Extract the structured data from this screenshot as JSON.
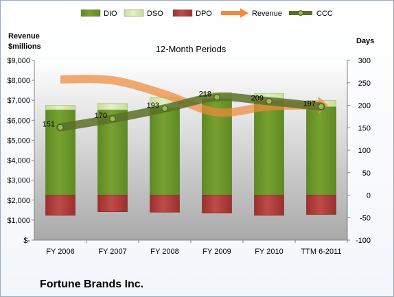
{
  "chart_data": {
    "type": "bar",
    "title": "12-Month Periods",
    "company": "Fortune Brands Inc.",
    "left_axis_title": [
      "Revenue",
      "$millions"
    ],
    "right_axis_title": "Days",
    "left_axis": {
      "min": 0,
      "max": 9000,
      "step": 1000,
      "tick_labels": [
        "$-",
        "$1,000",
        "$2,000",
        "$3,000",
        "$4,000",
        "$5,000",
        "$6,000",
        "$7,000",
        "$8,000",
        "$9,000"
      ]
    },
    "right_axis": {
      "min": -100,
      "max": 300,
      "step": 50,
      "tick_labels": [
        "-100",
        "-50",
        "0",
        "50",
        "100",
        "150",
        "200",
        "250",
        "300"
      ]
    },
    "categories": [
      "FY 2006",
      "FY 2007",
      "FY 2008",
      "FY 2009",
      "FY 2010",
      "TTM 6-2011"
    ],
    "series": [
      {
        "name": "DIO",
        "kind": "bar",
        "axis": "days",
        "color": "#77a132",
        "values": [
          190,
          190,
          195,
          215,
          210,
          197
        ]
      },
      {
        "name": "DSO",
        "kind": "bar",
        "axis": "days",
        "color": "#e3efc5",
        "values": [
          10,
          14,
          22,
          14,
          16,
          14
        ]
      },
      {
        "name": "DPO",
        "kind": "bar",
        "axis": "days",
        "color": "#bf4b48",
        "values": [
          -45,
          -37,
          -38,
          -40,
          -45,
          -43
        ]
      },
      {
        "name": "Revenue",
        "kind": "line",
        "axis": "revenue",
        "color": "#f08a3c",
        "values": [
          8050,
          8000,
          7300,
          6400,
          6700,
          6750
        ]
      },
      {
        "name": "CCC",
        "kind": "line",
        "axis": "days",
        "color": "#5a7028",
        "values": [
          151,
          170,
          193,
          218,
          209,
          197
        ]
      }
    ],
    "ccc_labels": [
      "151",
      "170",
      "193",
      "218",
      "209",
      "197"
    ],
    "grid": false,
    "legend_position": "top"
  }
}
